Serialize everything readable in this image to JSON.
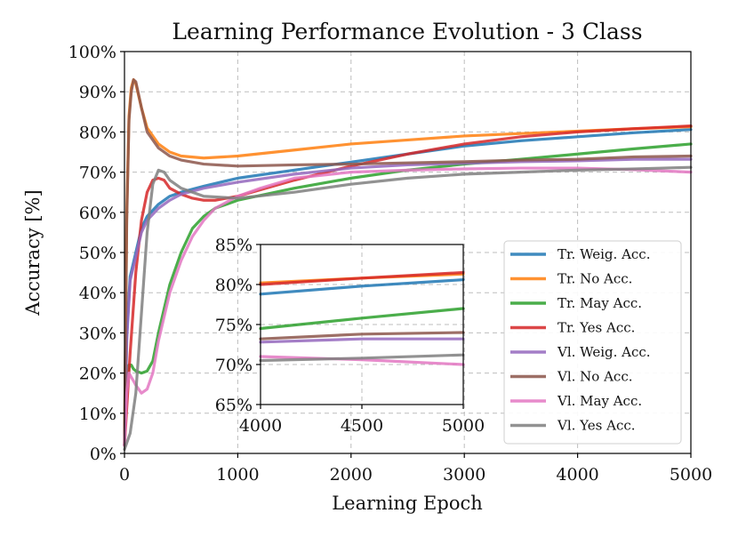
{
  "chart_data": {
    "type": "line",
    "title": "Learning Performance Evolution - 3 Class",
    "xlabel": "Learning Epoch",
    "ylabel": "Accuracy [%]",
    "xlim": [
      0,
      5000
    ],
    "ylim": [
      0,
      100
    ],
    "xticks": [
      0,
      1000,
      2000,
      3000,
      4000,
      5000
    ],
    "yticks": [
      0,
      10,
      20,
      30,
      40,
      50,
      60,
      70,
      80,
      90,
      100
    ],
    "ytick_suffix": "%",
    "grid": true,
    "legend_position": "lower-right",
    "series": [
      {
        "name": "Tr. Weig. Acc.",
        "color": "#1f77b4",
        "x": [
          0,
          20,
          50,
          100,
          150,
          200,
          300,
          400,
          500,
          700,
          1000,
          1500,
          2000,
          2500,
          3000,
          3500,
          4000,
          4500,
          5000
        ],
        "y": [
          2,
          30,
          44,
          50,
          56,
          59,
          62,
          64,
          65,
          66.5,
          68.5,
          70.5,
          72.5,
          74.5,
          76.5,
          77.8,
          78.8,
          79.8,
          80.6
        ]
      },
      {
        "name": "Tr. No Acc.",
        "color": "#ff7f0e",
        "x": [
          0,
          20,
          40,
          60,
          80,
          100,
          150,
          200,
          300,
          400,
          500,
          700,
          1000,
          1500,
          2000,
          2500,
          3000,
          3500,
          4000,
          4500,
          5000
        ],
        "y": [
          2,
          60,
          84,
          91,
          93,
          92,
          86,
          81,
          77,
          75,
          74,
          73.5,
          74,
          75.5,
          77,
          78,
          79,
          79.6,
          80.2,
          80.8,
          81.3
        ]
      },
      {
        "name": "Tr. May Acc.",
        "color": "#2ca02c",
        "x": [
          0,
          20,
          40,
          60,
          80,
          100,
          150,
          200,
          250,
          300,
          400,
          500,
          600,
          700,
          800,
          1000,
          1500,
          2000,
          2500,
          3000,
          3500,
          4000,
          4500,
          5000
        ],
        "y": [
          2,
          15,
          22,
          22,
          21,
          20.5,
          20,
          20.5,
          23,
          30,
          42,
          50,
          56,
          59,
          61,
          63,
          66,
          68.5,
          70.5,
          72,
          73.2,
          74.5,
          75.8,
          77
        ]
      },
      {
        "name": "Tr. Yes Acc.",
        "color": "#d62728",
        "x": [
          0,
          50,
          100,
          150,
          200,
          250,
          300,
          350,
          400,
          500,
          600,
          700,
          800,
          1000,
          1500,
          2000,
          2500,
          3000,
          3500,
          4000,
          4500,
          5000
        ],
        "y": [
          2,
          25,
          45,
          58,
          65,
          68,
          68.5,
          68,
          66,
          64.5,
          63.5,
          63,
          63,
          64,
          68,
          71.5,
          74.5,
          77,
          78.8,
          80,
          80.8,
          81.5
        ]
      },
      {
        "name": "Vl. Weig. Acc.",
        "color": "#9467bd",
        "x": [
          0,
          20,
          50,
          100,
          150,
          200,
          300,
          400,
          500,
          700,
          1000,
          1500,
          2000,
          2500,
          3000,
          3500,
          4000,
          4500,
          5000
        ],
        "y": [
          2,
          28,
          43,
          49,
          55,
          58,
          61,
          63,
          64.5,
          66,
          67.5,
          69.5,
          71,
          71.8,
          72.2,
          72.6,
          72.8,
          73.2,
          73.2
        ]
      },
      {
        "name": "Vl. No Acc.",
        "color": "#8c564b",
        "x": [
          0,
          20,
          40,
          60,
          80,
          100,
          150,
          200,
          300,
          400,
          500,
          700,
          1000,
          1500,
          2000,
          2500,
          3000,
          3500,
          4000,
          4500,
          5000
        ],
        "y": [
          2,
          58,
          83,
          90,
          93,
          92.5,
          86,
          80,
          76,
          74,
          73,
          72,
          71.5,
          71.8,
          72,
          72.3,
          72.6,
          73,
          73.2,
          73.8,
          74
        ]
      },
      {
        "name": "Vl. May Acc.",
        "color": "#e377c2",
        "x": [
          0,
          20,
          40,
          60,
          80,
          100,
          150,
          200,
          250,
          300,
          400,
          500,
          600,
          700,
          800,
          1000,
          1200,
          1500,
          2000,
          2500,
          3000,
          3500,
          4000,
          4500,
          5000
        ],
        "y": [
          2,
          15,
          20,
          19,
          18,
          17,
          15,
          16,
          20,
          28,
          40,
          48,
          54,
          58,
          61,
          64,
          66,
          68.5,
          70,
          70.5,
          70.8,
          71,
          71,
          70.6,
          70
        ]
      },
      {
        "name": "Vl. Yes Acc.",
        "color": "#7f7f7f",
        "x": [
          0,
          50,
          100,
          150,
          200,
          250,
          300,
          350,
          400,
          500,
          700,
          1000,
          1500,
          2000,
          2500,
          3000,
          3500,
          4000,
          4500,
          5000
        ],
        "y": [
          1,
          5,
          15,
          35,
          55,
          67,
          70.5,
          70,
          68,
          66,
          64,
          63.5,
          65,
          67,
          68.5,
          69.5,
          70,
          70.5,
          70.8,
          71.2
        ]
      }
    ],
    "inset": {
      "xlim": [
        4000,
        5000
      ],
      "ylim": [
        65,
        85
      ],
      "xticks": [
        4000,
        4500,
        5000
      ],
      "yticks": [
        65,
        70,
        75,
        80,
        85
      ],
      "ytick_suffix": "%"
    }
  }
}
